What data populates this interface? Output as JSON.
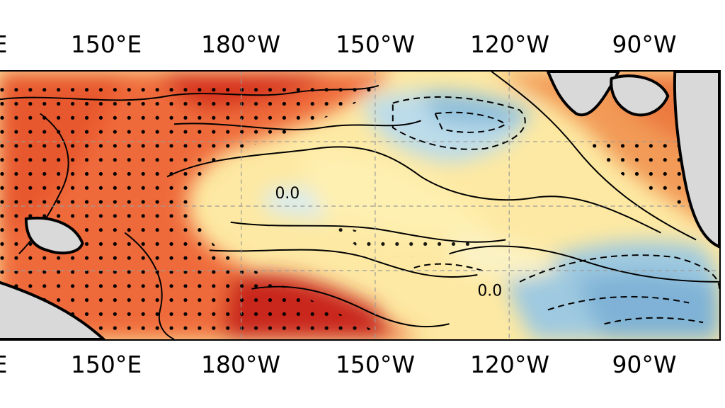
{
  "map": {
    "top_axis_labels": [
      "E",
      "150°E",
      "180°W",
      "150°W",
      "120°W",
      "90°W"
    ],
    "bottom_axis_labels": [
      "E",
      "150°E",
      "180°W",
      "150°W",
      "120°W",
      "90°W"
    ],
    "contour_labels": [
      "0.0",
      "0.0"
    ],
    "colors": {
      "warm_strong": "#d7301f",
      "warm": "#ef6a3a",
      "warm_light": "#f9a35a",
      "neutral": "#fee69a",
      "cool_light": "#dceff2",
      "cool": "#9ecae1",
      "land": "#d9d9d9",
      "contour": "#000000"
    },
    "gridlines": "dashed"
  }
}
